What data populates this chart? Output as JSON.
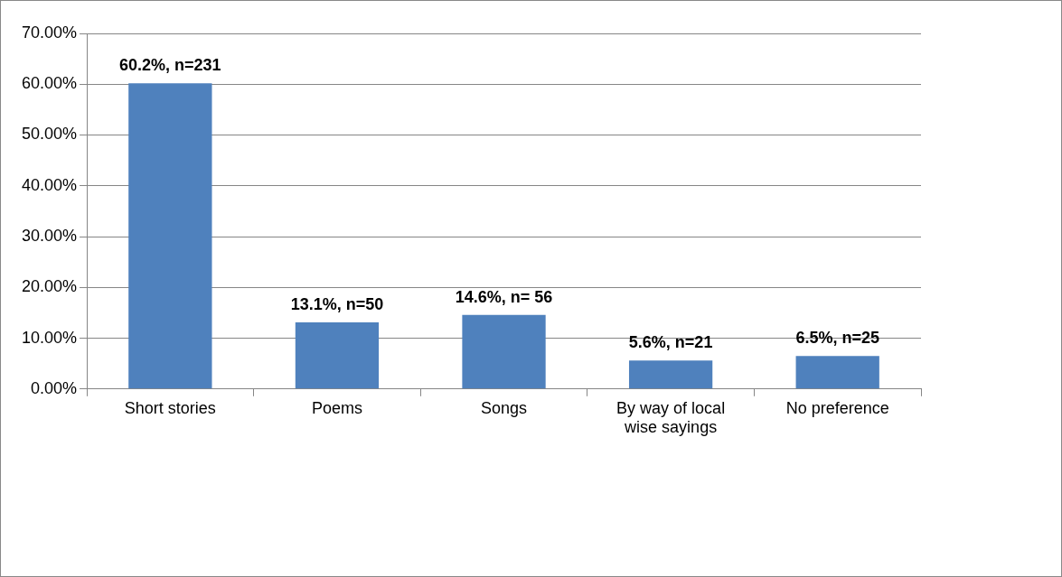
{
  "chart_data": {
    "type": "bar",
    "categories": [
      "Short stories",
      "Poems",
      "Songs",
      "By way of local wise sayings",
      "No preference"
    ],
    "values": [
      60.2,
      13.1,
      14.6,
      5.6,
      6.5
    ],
    "value_labels": [
      "60.2%, n=231",
      "13.1%, n=50",
      "14.6%, n= 56",
      "5.6%, n=21",
      "6.5%, n=25"
    ],
    "color": "#4f81bd",
    "ylim": [
      0,
      70
    ],
    "yticks": [
      {
        "value": 0,
        "label": "0.00%"
      },
      {
        "value": 10,
        "label": "10.00%"
      },
      {
        "value": 20,
        "label": "20.00%"
      },
      {
        "value": 30,
        "label": "30.00%"
      },
      {
        "value": 40,
        "label": "40.00%"
      },
      {
        "value": 50,
        "label": "50.00%"
      },
      {
        "value": 60,
        "label": "60.00%"
      },
      {
        "value": 70,
        "label": "70.00%"
      }
    ],
    "grid": "y",
    "legend": false
  }
}
